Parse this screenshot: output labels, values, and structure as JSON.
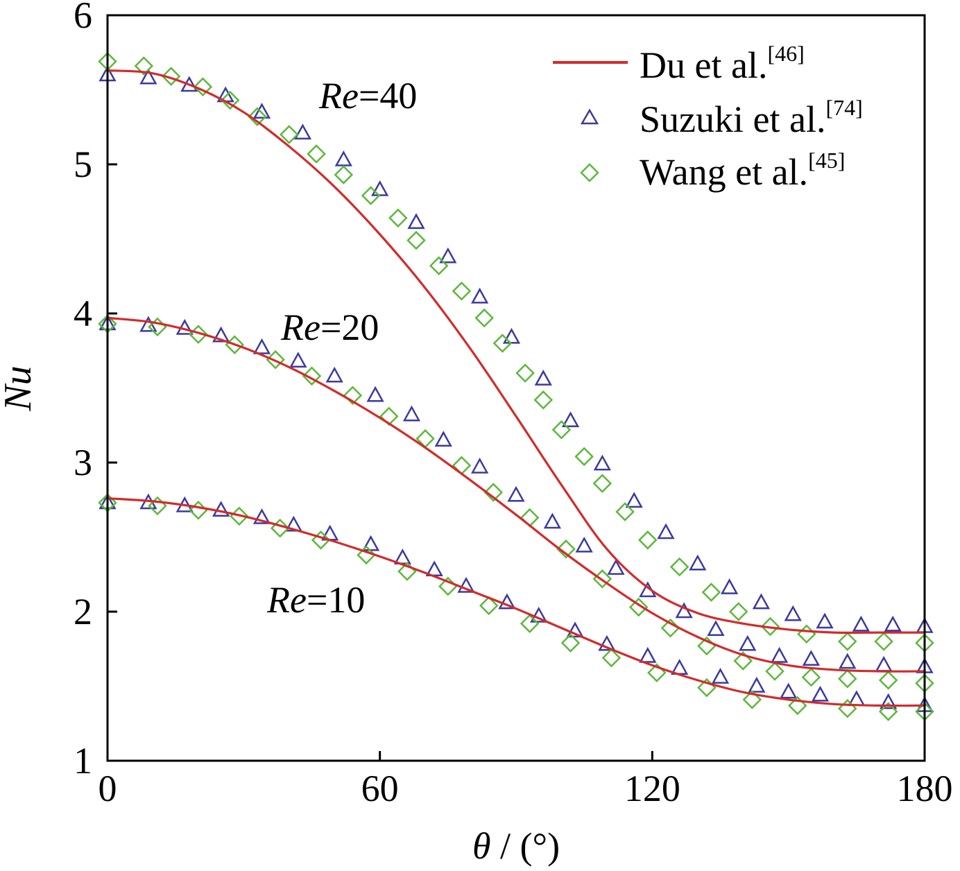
{
  "chart_data": {
    "type": "line",
    "xlabel": {
      "symbol": "θ",
      "rest": " / (°)"
    },
    "ylabel": "Nu",
    "xlim": [
      0,
      180
    ],
    "ylim": [
      1,
      6
    ],
    "xticks": [
      "0",
      "60",
      "120",
      "180"
    ],
    "yticks": [
      "1",
      "2",
      "3",
      "4",
      "5",
      "6"
    ],
    "legend": {
      "position": "top-right",
      "entries": [
        {
          "name": "Du et al.",
          "ref": "[46]",
          "marker": "line",
          "color": "#d42a2a"
        },
        {
          "name": "Suzuki et al.",
          "ref": "[74]",
          "marker": "triangle",
          "color": "#3a3aa0"
        },
        {
          "name": "Wang et al.",
          "ref": "[45]",
          "marker": "diamond",
          "color": "#5bb83a"
        }
      ]
    },
    "annotations": [
      {
        "italic": "Re",
        "rest": "=40"
      },
      {
        "italic": "Re",
        "rest": "=20"
      },
      {
        "italic": "Re",
        "rest": "=10"
      }
    ],
    "series": [
      {
        "name": "Du et al.",
        "group": "Re=40",
        "style": "line",
        "x": [
          0,
          10,
          20,
          30,
          40,
          50,
          60,
          70,
          80,
          90,
          100,
          110,
          120,
          130,
          140,
          150,
          160,
          170,
          180
        ],
        "y": [
          5.63,
          5.61,
          5.51,
          5.35,
          5.12,
          4.85,
          4.53,
          4.17,
          3.76,
          3.31,
          2.85,
          2.42,
          2.14,
          1.99,
          1.92,
          1.88,
          1.86,
          1.86,
          1.86
        ]
      },
      {
        "name": "Du et al.",
        "group": "Re=20",
        "style": "line",
        "x": [
          0,
          10,
          20,
          30,
          40,
          50,
          60,
          70,
          80,
          90,
          100,
          110,
          120,
          130,
          140,
          150,
          160,
          170,
          180
        ],
        "y": [
          3.97,
          3.94,
          3.87,
          3.77,
          3.64,
          3.48,
          3.3,
          3.1,
          2.88,
          2.65,
          2.41,
          2.19,
          1.99,
          1.83,
          1.71,
          1.64,
          1.61,
          1.6,
          1.6
        ]
      },
      {
        "name": "Du et al.",
        "group": "Re=10",
        "style": "line",
        "x": [
          0,
          10,
          20,
          30,
          40,
          50,
          60,
          70,
          80,
          90,
          100,
          110,
          120,
          130,
          140,
          150,
          160,
          170,
          180
        ],
        "y": [
          2.76,
          2.74,
          2.7,
          2.64,
          2.56,
          2.47,
          2.37,
          2.26,
          2.14,
          2.02,
          1.89,
          1.76,
          1.64,
          1.54,
          1.46,
          1.41,
          1.38,
          1.37,
          1.37
        ]
      },
      {
        "name": "Suzuki et al.",
        "group": "Re=40",
        "style": "triangle",
        "x": [
          0,
          9,
          18,
          26,
          34,
          43,
          52,
          60,
          68,
          75,
          82,
          89,
          96,
          102,
          109,
          116,
          123,
          130,
          137,
          144,
          151,
          158,
          166,
          173,
          180
        ],
        "y": [
          5.6,
          5.58,
          5.53,
          5.46,
          5.35,
          5.21,
          5.03,
          4.83,
          4.61,
          4.38,
          4.11,
          3.84,
          3.56,
          3.28,
          2.99,
          2.74,
          2.53,
          2.32,
          2.16,
          2.06,
          1.98,
          1.93,
          1.91,
          1.91,
          1.9
        ]
      },
      {
        "name": "Suzuki et al.",
        "group": "Re=20",
        "style": "triangle",
        "x": [
          0,
          9,
          17,
          25,
          34,
          42,
          50,
          59,
          67,
          74,
          82,
          90,
          98,
          105,
          112,
          119,
          127,
          134,
          141,
          148,
          155,
          163,
          171,
          180
        ],
        "y": [
          3.93,
          3.92,
          3.9,
          3.85,
          3.77,
          3.68,
          3.58,
          3.45,
          3.32,
          3.15,
          2.97,
          2.78,
          2.6,
          2.44,
          2.29,
          2.14,
          2.0,
          1.88,
          1.78,
          1.7,
          1.68,
          1.66,
          1.64,
          1.63
        ]
      },
      {
        "name": "Suzuki et al.",
        "group": "Re=10",
        "style": "triangle",
        "x": [
          0,
          9,
          17,
          25,
          34,
          41,
          49,
          58,
          65,
          72,
          79,
          88,
          95,
          103,
          110,
          119,
          126,
          135,
          143,
          150,
          157,
          165,
          172,
          180
        ],
        "y": [
          2.73,
          2.73,
          2.71,
          2.68,
          2.63,
          2.58,
          2.52,
          2.45,
          2.36,
          2.28,
          2.17,
          2.06,
          1.97,
          1.87,
          1.78,
          1.7,
          1.62,
          1.56,
          1.5,
          1.46,
          1.44,
          1.41,
          1.39,
          1.37
        ]
      },
      {
        "name": "Wang et al.",
        "group": "Re=40",
        "style": "diamond",
        "x": [
          0,
          8,
          14,
          21,
          27,
          33,
          40,
          46,
          52,
          58,
          64,
          68,
          73,
          78,
          83,
          87,
          92,
          96,
          100,
          105,
          109,
          114,
          119,
          126,
          133,
          139,
          146,
          154,
          163,
          171,
          180
        ],
        "y": [
          5.69,
          5.66,
          5.59,
          5.52,
          5.43,
          5.32,
          5.2,
          5.07,
          4.93,
          4.79,
          4.64,
          4.49,
          4.32,
          4.15,
          3.97,
          3.8,
          3.6,
          3.42,
          3.22,
          3.04,
          2.86,
          2.67,
          2.48,
          2.3,
          2.13,
          2.0,
          1.9,
          1.85,
          1.8,
          1.8,
          1.79
        ]
      },
      {
        "name": "Wang et al.",
        "group": "Re=20",
        "style": "diamond",
        "x": [
          0,
          11,
          20,
          28,
          37,
          45,
          54,
          62,
          70,
          78,
          85,
          93,
          101,
          109,
          117,
          124,
          132,
          140,
          147,
          155,
          163,
          172,
          180
        ],
        "y": [
          3.93,
          3.91,
          3.86,
          3.79,
          3.69,
          3.58,
          3.45,
          3.31,
          3.16,
          2.98,
          2.8,
          2.63,
          2.42,
          2.22,
          2.03,
          1.89,
          1.77,
          1.67,
          1.6,
          1.56,
          1.55,
          1.54,
          1.52
        ]
      },
      {
        "name": "Wang et al.",
        "group": "Re=10",
        "style": "diamond",
        "x": [
          0,
          11,
          20,
          29,
          38,
          47,
          57,
          66,
          75,
          84,
          93,
          102,
          111,
          121,
          132,
          142,
          152,
          163,
          172,
          180
        ],
        "y": [
          2.73,
          2.71,
          2.68,
          2.64,
          2.56,
          2.48,
          2.38,
          2.27,
          2.17,
          2.04,
          1.92,
          1.79,
          1.69,
          1.59,
          1.49,
          1.41,
          1.37,
          1.35,
          1.33,
          1.33
        ]
      }
    ]
  }
}
